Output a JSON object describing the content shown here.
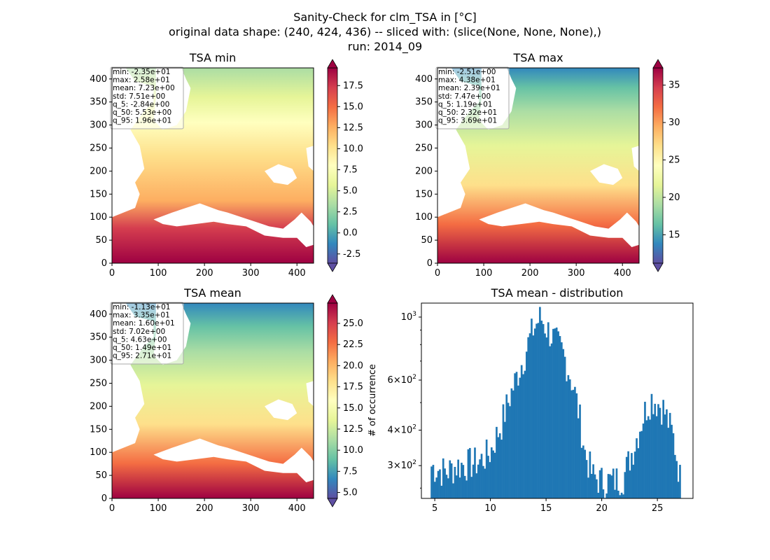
{
  "figure": {
    "title_lines": [
      "Sanity-Check for clm_TSA in [°C]",
      "original data shape: (240, 424, 436) -- sliced with: (slice(None, None, None),)",
      "run: 2014_09"
    ]
  },
  "colors": {
    "cmap": [
      "#5e4fa2",
      "#3288bd",
      "#66c2a5",
      "#abdda4",
      "#e6f598",
      "#ffffbf",
      "#fee08b",
      "#fdae61",
      "#f46d43",
      "#d53e4f",
      "#9e0142"
    ],
    "hist_bar": "#1f77b4",
    "axis": "#000000"
  },
  "chart_data": [
    {
      "type": "heatmap",
      "title": "TSA min",
      "x_ticks": [
        "0",
        "100",
        "200",
        "300",
        "400"
      ],
      "y_ticks": [
        "0",
        "50",
        "100",
        "150",
        "200",
        "250",
        "300",
        "350",
        "400"
      ],
      "colorbar": {
        "vmin": -3.6,
        "vmax": 19.6,
        "ticks": [
          "-2.5",
          "0.0",
          "2.5",
          "5.0",
          "7.5",
          "10.0",
          "12.5",
          "15.0",
          "17.5"
        ],
        "extend": "both"
      },
      "stats": [
        "min: -2.35e+01",
        "max: 2.58e+01",
        "mean: 7.23e+00",
        "std: 7.51e+00",
        "q_5: -2.84e+00",
        "q_50: 5.53e+00",
        "q_95: 1.96e+01"
      ]
    },
    {
      "type": "heatmap",
      "title": "TSA max",
      "x_ticks": [
        "0",
        "100",
        "200",
        "300",
        "400"
      ],
      "y_ticks": [
        "0",
        "50",
        "100",
        "150",
        "200",
        "250",
        "300",
        "350",
        "400"
      ],
      "colorbar": {
        "vmin": 11.2,
        "vmax": 37.3,
        "ticks": [
          "15",
          "20",
          "25",
          "30",
          "35"
        ],
        "extend": "both"
      },
      "stats": [
        "min: -2.51e+00",
        "max: 4.38e+01",
        "mean: 2.39e+01",
        "std: 7.47e+00",
        "q_5: 1.19e+01",
        "q_50: 2.32e+01",
        "q_95: 3.69e+01"
      ]
    },
    {
      "type": "heatmap",
      "title": "TSA mean",
      "x_ticks": [
        "0",
        "100",
        "200",
        "300",
        "400"
      ],
      "y_ticks": [
        "0",
        "50",
        "100",
        "150",
        "200",
        "250",
        "300",
        "350",
        "400"
      ],
      "colorbar": {
        "vmin": 4.3,
        "vmax": 27.4,
        "ticks": [
          "5.0",
          "7.5",
          "10.0",
          "12.5",
          "15.0",
          "17.5",
          "20.0",
          "22.5",
          "25.0"
        ],
        "extend": "both"
      },
      "stats": [
        "min: -1.13e+01",
        "max: 3.35e+01",
        "mean: 1.60e+01",
        "std: 7.02e+00",
        "q_5: 4.63e+00",
        "q_50: 1.49e+01",
        "q_95: 2.71e+01"
      ]
    },
    {
      "type": "bar",
      "title": "TSA mean - distribution",
      "ylabel": "# of occurrence",
      "yscale": "log",
      "xlim": [
        3.8,
        28.2
      ],
      "ylim": [
        230,
        1120
      ],
      "x_ticks": [
        "5",
        "10",
        "15",
        "20",
        "25"
      ],
      "y_ticks": [
        {
          "base": "10",
          "exp": "3",
          "value": 1000
        },
        {
          "coef": "6",
          "base": "10",
          "exp": "2",
          "value": 600
        },
        {
          "coef": "4",
          "base": "10",
          "exp": "2",
          "value": 400
        },
        {
          "coef": "3",
          "base": "10",
          "exp": "2",
          "value": 300
        }
      ],
      "bins": {
        "start": 4.63,
        "end": 27.1,
        "count": 150
      },
      "profile": [
        [
          4.6,
          300
        ],
        [
          5.0,
          295
        ],
        [
          6.0,
          285
        ],
        [
          7.0,
          300
        ],
        [
          8.0,
          305
        ],
        [
          9.0,
          310
        ],
        [
          10.0,
          335
        ],
        [
          11.0,
          420
        ],
        [
          12.0,
          560
        ],
        [
          13.0,
          720
        ],
        [
          13.8,
          900
        ],
        [
          14.5,
          1000
        ],
        [
          15.0,
          920
        ],
        [
          15.6,
          850
        ],
        [
          16.5,
          750
        ],
        [
          17.5,
          560
        ],
        [
          18.5,
          330
        ],
        [
          19.2,
          275
        ],
        [
          20.0,
          265
        ],
        [
          21.0,
          265
        ],
        [
          22.0,
          275
        ],
        [
          23.0,
          360
        ],
        [
          24.0,
          480
        ],
        [
          24.5,
          520
        ],
        [
          25.5,
          480
        ],
        [
          26.4,
          380
        ],
        [
          27.1,
          260
        ]
      ]
    }
  ]
}
